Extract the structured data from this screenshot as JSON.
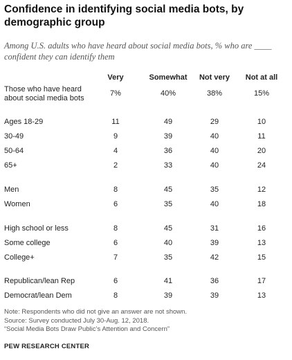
{
  "title": "Confidence in identifying social media bots, by demographic group",
  "subtitle": "Among U.S. adults who have heard about social media bots, % who are ____ confident they can identify them",
  "chart_data": {
    "type": "table",
    "columns": [
      "Very",
      "Somewhat",
      "Not very",
      "Not at all"
    ],
    "rows": [
      {
        "label": [
          "Those who have heard",
          "about social media bots"
        ],
        "values": [
          "7%",
          "40%",
          "38%",
          "15%"
        ]
      },
      {
        "label": [
          "Ages 18-29"
        ],
        "values": [
          "11",
          "49",
          "29",
          "10"
        ]
      },
      {
        "label": [
          "30-49"
        ],
        "values": [
          "9",
          "39",
          "40",
          "11"
        ]
      },
      {
        "label": [
          "50-64"
        ],
        "values": [
          "4",
          "36",
          "40",
          "20"
        ]
      },
      {
        "label": [
          "65+"
        ],
        "values": [
          "2",
          "33",
          "40",
          "24"
        ]
      },
      {
        "label": [
          "Men"
        ],
        "values": [
          "8",
          "45",
          "35",
          "12"
        ]
      },
      {
        "label": [
          "Women"
        ],
        "values": [
          "6",
          "35",
          "40",
          "18"
        ]
      },
      {
        "label": [
          "High school or less"
        ],
        "values": [
          "8",
          "45",
          "31",
          "16"
        ]
      },
      {
        "label": [
          "Some college"
        ],
        "values": [
          "6",
          "40",
          "39",
          "13"
        ]
      },
      {
        "label": [
          "College+"
        ],
        "values": [
          "7",
          "35",
          "42",
          "15"
        ]
      },
      {
        "label": [
          "Republican/lean Rep"
        ],
        "values": [
          "6",
          "41",
          "36",
          "17"
        ]
      },
      {
        "label": [
          "Democrat/lean Dem"
        ],
        "values": [
          "8",
          "39",
          "39",
          "13"
        ]
      }
    ]
  },
  "notes": [
    "Note: Respondents who did not give an answer are not shown.",
    "Source: Survey conducted July 30-Aug. 12, 2018.",
    "“Social Media Bots Draw Public’s Attention and Concern”"
  ],
  "brand": "PEW RESEARCH CENTER"
}
